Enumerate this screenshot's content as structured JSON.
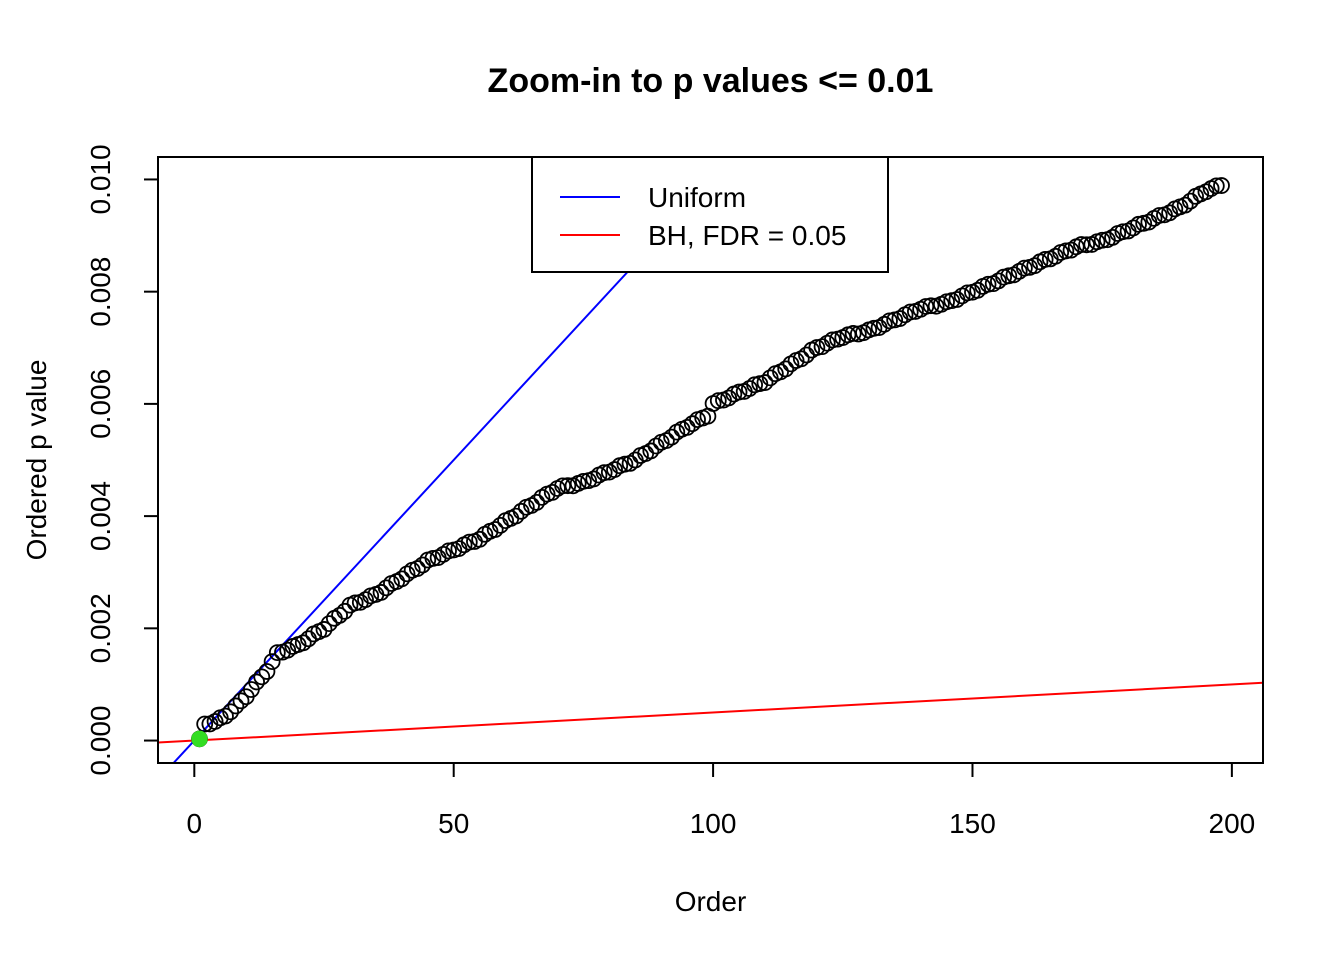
{
  "chart_data": {
    "type": "scatter",
    "title": "Zoom-in to p values <= 0.01",
    "xlabel": "Order",
    "ylabel": "Ordered p value",
    "xlim": [
      -7,
      206
    ],
    "ylim": [
      -0.0004,
      0.0104
    ],
    "x_ticks": [
      0,
      50,
      100,
      150,
      200
    ],
    "y_ticks": [
      0.0,
      0.002,
      0.004,
      0.006,
      0.008,
      0.01
    ],
    "x_tick_labels": [
      "0",
      "50",
      "100",
      "150",
      "200"
    ],
    "y_tick_labels": [
      "0.000",
      "0.002",
      "0.004",
      "0.006",
      "0.008",
      "0.010"
    ],
    "grid": false,
    "legend_position": "top-center",
    "lines": [
      {
        "name": "Uniform",
        "color": "#0000ff",
        "slope": 0.0001,
        "intercept": 0
      },
      {
        "name": "BH, FDR = 0.05",
        "color": "#ff0000",
        "slope": 5e-06,
        "intercept": 0
      }
    ],
    "highlight_point": {
      "x": 1,
      "y": 3e-05,
      "color": "#33dd22"
    },
    "anchors": [
      [
        1,
        3e-05
      ],
      [
        2,
        0.0003
      ],
      [
        4,
        0.00033
      ],
      [
        6,
        0.00045
      ],
      [
        8,
        0.0006
      ],
      [
        10,
        0.0008
      ],
      [
        14,
        0.00125
      ],
      [
        16,
        0.00155
      ],
      [
        20,
        0.0017
      ],
      [
        25,
        0.002
      ],
      [
        30,
        0.0024
      ],
      [
        35,
        0.0026
      ],
      [
        40,
        0.0029
      ],
      [
        45,
        0.0032
      ],
      [
        50,
        0.0034
      ],
      [
        55,
        0.0036
      ],
      [
        60,
        0.0039
      ],
      [
        65,
        0.0042
      ],
      [
        70,
        0.0045
      ],
      [
        75,
        0.0046
      ],
      [
        80,
        0.0048
      ],
      [
        85,
        0.005
      ],
      [
        90,
        0.0053
      ],
      [
        95,
        0.0056
      ],
      [
        99,
        0.0058
      ],
      [
        100,
        0.006
      ],
      [
        105,
        0.0062
      ],
      [
        110,
        0.0064
      ],
      [
        115,
        0.0067
      ],
      [
        120,
        0.007
      ],
      [
        125,
        0.0072
      ],
      [
        130,
        0.0073
      ],
      [
        135,
        0.0075
      ],
      [
        140,
        0.0077
      ],
      [
        145,
        0.0078
      ],
      [
        150,
        0.008
      ],
      [
        155,
        0.0082
      ],
      [
        160,
        0.0084
      ],
      [
        165,
        0.0086
      ],
      [
        170,
        0.0088
      ],
      [
        175,
        0.0089
      ],
      [
        180,
        0.0091
      ],
      [
        185,
        0.0093
      ],
      [
        190,
        0.0095
      ],
      [
        195,
        0.0098
      ],
      [
        198,
        0.0099
      ]
    ],
    "n_points": 198
  }
}
